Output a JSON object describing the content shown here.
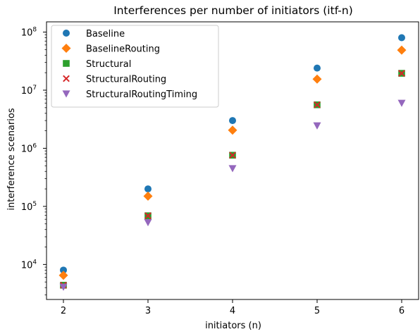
{
  "chart_data": {
    "type": "scatter",
    "title": "Interferences per number of initiators (itf-n)",
    "xlabel": "initiators (n)",
    "ylabel": "interference scenarios",
    "x": [
      2,
      3,
      4,
      5,
      6
    ],
    "xlim": [
      1.8,
      6.2
    ],
    "ylim": [
      2500,
      150000000
    ],
    "yscale": "log",
    "xticks": [
      2,
      3,
      4,
      5,
      6
    ],
    "xtick_labels": [
      "2",
      "3",
      "4",
      "5",
      "6"
    ],
    "yticks": [
      10000,
      100000,
      1000000,
      10000000,
      100000000
    ],
    "ytick_labels": [
      {
        "base": "10",
        "exp": "4"
      },
      {
        "base": "10",
        "exp": "5"
      },
      {
        "base": "10",
        "exp": "6"
      },
      {
        "base": "10",
        "exp": "7"
      },
      {
        "base": "10",
        "exp": "8"
      }
    ],
    "grid": false,
    "legend_position": "upper-left",
    "series": [
      {
        "name": "Baseline",
        "marker": "circle",
        "color": "#1f77b4",
        "values": [
          8000,
          200000,
          3000000,
          24000000,
          80000000
        ]
      },
      {
        "name": "BaselineRouting",
        "marker": "diamond",
        "color": "#ff7f0e",
        "values": [
          6500,
          150000,
          2050000,
          15500000,
          49000000
        ]
      },
      {
        "name": "Structural",
        "marker": "square",
        "color": "#2ca02c",
        "values": [
          4400,
          69000,
          760000,
          5600000,
          19500000
        ]
      },
      {
        "name": "StructuralRouting",
        "marker": "x",
        "color": "#d62728",
        "values": [
          4400,
          69000,
          760000,
          5600000,
          19500000
        ]
      },
      {
        "name": "StructuralRoutingTiming",
        "marker": "triangle-down",
        "color": "#9467bd",
        "values": [
          4100,
          53000,
          450000,
          2450000,
          6000000
        ]
      }
    ]
  }
}
